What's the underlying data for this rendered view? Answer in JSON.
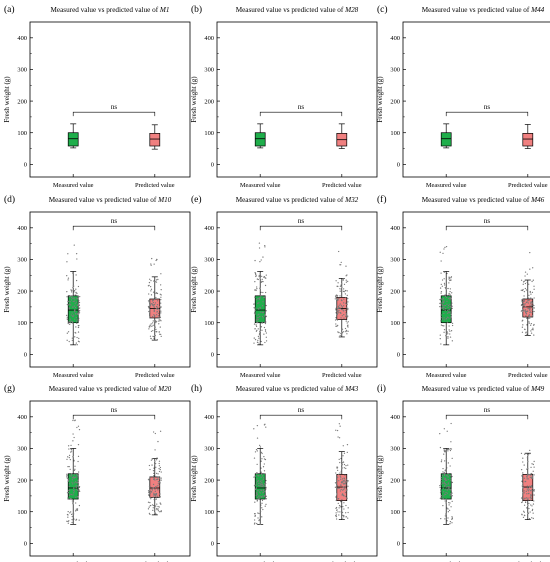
{
  "figure": {
    "colors": {
      "measured": "#1fae4b",
      "predicted": "#f08080",
      "dots": "#7a7a7a",
      "axis": "#000000"
    }
  },
  "chart_data": [
    {
      "panel": "(a)",
      "type": "box",
      "title_prefix": "Measured value vs predicted value of ",
      "title_model": "M1",
      "ylabel": "Fresh weight (g)",
      "ylim": [
        -40,
        450
      ],
      "yticks": [
        0,
        100,
        200,
        300,
        400
      ],
      "categories": [
        "Measured value",
        "Predicted value"
      ],
      "significance": "ns",
      "points": false,
      "boxes": [
        {
          "name": "Measured value",
          "whisker_low": 52,
          "q1": 58,
          "median": 81,
          "q3": 100,
          "whisker_high": 128
        },
        {
          "name": "Predicted value",
          "whisker_low": 48,
          "q1": 58,
          "median": 80,
          "q3": 98,
          "whisker_high": 125
        }
      ]
    },
    {
      "panel": "(b)",
      "type": "box",
      "title_prefix": "Measured value vs predicted value of ",
      "title_model": "M28",
      "ylabel": "Fresh weight (g)",
      "ylim": [
        -40,
        450
      ],
      "yticks": [
        0,
        100,
        200,
        300,
        400
      ],
      "categories": [
        "Measured value",
        "Predicted value"
      ],
      "significance": "ns",
      "points": false,
      "boxes": [
        {
          "name": "Measured value",
          "whisker_low": 52,
          "q1": 58,
          "median": 81,
          "q3": 100,
          "whisker_high": 128
        },
        {
          "name": "Predicted value",
          "whisker_low": 50,
          "q1": 58,
          "median": 78,
          "q3": 98,
          "whisker_high": 128
        }
      ]
    },
    {
      "panel": "(c)",
      "type": "box",
      "title_prefix": "Measured value vs predicted value of ",
      "title_model": "M44",
      "ylabel": "Fresh weight (g)",
      "ylim": [
        -40,
        450
      ],
      "yticks": [
        0,
        100,
        200,
        300,
        400
      ],
      "categories": [
        "Measured value",
        "Predicted value"
      ],
      "significance": "ns",
      "points": false,
      "boxes": [
        {
          "name": "Measured value",
          "whisker_low": 52,
          "q1": 58,
          "median": 81,
          "q3": 100,
          "whisker_high": 128
        },
        {
          "name": "Predicted value",
          "whisker_low": 50,
          "q1": 58,
          "median": 80,
          "q3": 98,
          "whisker_high": 126
        }
      ]
    },
    {
      "panel": "(d)",
      "type": "box",
      "title_prefix": "Measured value vs predicted value of ",
      "title_model": "M10",
      "ylabel": "Fresh weight (g)",
      "ylim": [
        -40,
        450
      ],
      "yticks": [
        0,
        100,
        200,
        300,
        400
      ],
      "categories": [
        "Measured value",
        "Predicted value"
      ],
      "significance": "ns",
      "points": true,
      "boxes": [
        {
          "name": "Measured value",
          "whisker_low": 30,
          "q1": 100,
          "median": 140,
          "q3": 185,
          "whisker_high": 262
        },
        {
          "name": "Predicted value",
          "whisker_low": 45,
          "q1": 115,
          "median": 145,
          "q3": 175,
          "whisker_high": 245
        }
      ]
    },
    {
      "panel": "(e)",
      "type": "box",
      "title_prefix": "Measured value vs predicted value of ",
      "title_model": "M32",
      "ylabel": "Fresh weight (g)",
      "ylim": [
        -40,
        450
      ],
      "yticks": [
        0,
        100,
        200,
        300,
        400
      ],
      "categories": [
        "Measured value",
        "Predicted value"
      ],
      "significance": "ns",
      "points": true,
      "boxes": [
        {
          "name": "Measured value",
          "whisker_low": 30,
          "q1": 100,
          "median": 140,
          "q3": 185,
          "whisker_high": 262
        },
        {
          "name": "Predicted value",
          "whisker_low": 55,
          "q1": 110,
          "median": 145,
          "q3": 180,
          "whisker_high": 240
        }
      ]
    },
    {
      "panel": "(f)",
      "type": "box",
      "title_prefix": "Measured value vs predicted value of ",
      "title_model": "M46",
      "ylabel": "Fresh weight (g)",
      "ylim": [
        -40,
        450
      ],
      "yticks": [
        0,
        100,
        200,
        300,
        400
      ],
      "categories": [
        "Measured value",
        "Predicted value"
      ],
      "significance": "ns",
      "points": true,
      "boxes": [
        {
          "name": "Measured value",
          "whisker_low": 30,
          "q1": 100,
          "median": 140,
          "q3": 185,
          "whisker_high": 262
        },
        {
          "name": "Predicted value",
          "whisker_low": 60,
          "q1": 118,
          "median": 150,
          "q3": 175,
          "whisker_high": 235
        }
      ]
    },
    {
      "panel": "(g)",
      "type": "box",
      "title_prefix": "Measured value vs predicted value of ",
      "title_model": "M20",
      "ylabel": "Fresh weight (g)",
      "ylim": [
        -40,
        450
      ],
      "yticks": [
        0,
        100,
        200,
        300,
        400
      ],
      "categories": [
        "Measured value",
        "Predicted value"
      ],
      "significance": "ns",
      "points": true,
      "boxes": [
        {
          "name": "Measured value",
          "whisker_low": 60,
          "q1": 140,
          "median": 175,
          "q3": 220,
          "whisker_high": 300
        },
        {
          "name": "Predicted value",
          "whisker_low": 90,
          "q1": 145,
          "median": 175,
          "q3": 210,
          "whisker_high": 268
        }
      ]
    },
    {
      "panel": "(h)",
      "type": "box",
      "title_prefix": "Measured value vs predicted value of ",
      "title_model": "M43",
      "ylabel": "Fresh weight (g)",
      "ylim": [
        -40,
        450
      ],
      "yticks": [
        0,
        100,
        200,
        300,
        400
      ],
      "categories": [
        "Measured value",
        "Predicted value"
      ],
      "significance": "ns",
      "points": true,
      "boxes": [
        {
          "name": "Measured value",
          "whisker_low": 60,
          "q1": 140,
          "median": 175,
          "q3": 220,
          "whisker_high": 300
        },
        {
          "name": "Predicted value",
          "whisker_low": 75,
          "q1": 135,
          "median": 178,
          "q3": 218,
          "whisker_high": 290
        }
      ]
    },
    {
      "panel": "(i)",
      "type": "box",
      "title_prefix": "Measured value vs predicted value of ",
      "title_model": "M49",
      "ylabel": "Fresh weight (g)",
      "ylim": [
        -40,
        450
      ],
      "yticks": [
        0,
        100,
        200,
        300,
        400
      ],
      "categories": [
        "Measured value",
        "Predicted value"
      ],
      "significance": "ns",
      "points": true,
      "boxes": [
        {
          "name": "Measured value",
          "whisker_low": 60,
          "q1": 140,
          "median": 175,
          "q3": 220,
          "whisker_high": 300
        },
        {
          "name": "Predicted value",
          "whisker_low": 75,
          "q1": 135,
          "median": 178,
          "q3": 218,
          "whisker_high": 285
        }
      ]
    }
  ]
}
